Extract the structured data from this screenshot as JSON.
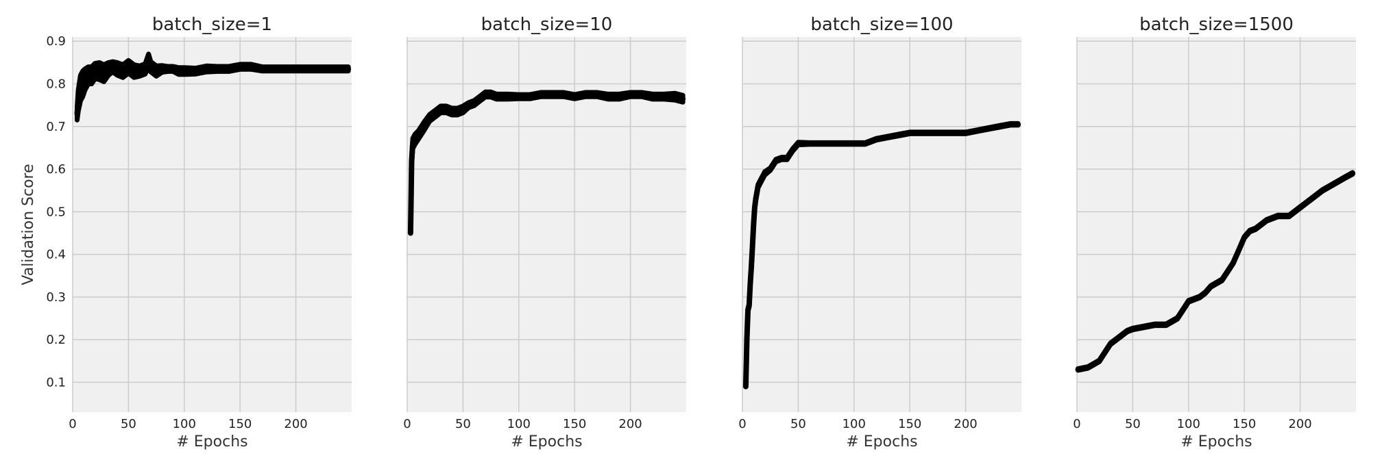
{
  "colors": {
    "plot_bg": "#f0f0f0",
    "grid": "#cbcbcb",
    "line": "#000000"
  },
  "chart_data": [
    {
      "type": "line",
      "title": "batch_size=1",
      "xlabel": "# Epochs",
      "ylabel": "Validation Score",
      "xlim": [
        0,
        250
      ],
      "ylim": [
        0.03,
        0.91
      ],
      "xticks": [
        0,
        50,
        100,
        150,
        200
      ],
      "yticks": [
        0.1,
        0.2,
        0.3,
        0.4,
        0.5,
        0.6,
        0.7,
        0.8,
        0.9
      ],
      "show_ytick_labels": true,
      "grid": true,
      "series": [
        {
          "x": [
            4,
            5,
            7,
            9,
            11,
            14,
            17,
            20,
            24,
            28,
            32,
            36,
            40,
            45,
            50,
            55,
            60,
            65,
            68,
            70,
            75,
            80,
            85,
            90,
            95,
            100,
            110,
            120,
            130,
            140,
            150,
            160,
            170,
            180,
            190,
            200,
            210,
            220,
            230,
            240,
            247
          ],
          "y": [
            0.73,
            0.76,
            0.79,
            0.8,
            0.81,
            0.82,
            0.82,
            0.83,
            0.83,
            0.825,
            0.835,
            0.84,
            0.835,
            0.83,
            0.84,
            0.83,
            0.83,
            0.835,
            0.855,
            0.84,
            0.83,
            0.835,
            0.835,
            0.835,
            0.83,
            0.83,
            0.83,
            0.835,
            0.835,
            0.835,
            0.84,
            0.84,
            0.835,
            0.835,
            0.835,
            0.835,
            0.835,
            0.835,
            0.835,
            0.835,
            0.835
          ],
          "noise": [
            0.015,
            0.025,
            0.03,
            0.03,
            0.025,
            0.02,
            0.02,
            0.018,
            0.02,
            0.02,
            0.015,
            0.012,
            0.015,
            0.015,
            0.015,
            0.015,
            0.012,
            0.012,
            0.015,
            0.012,
            0.012,
            0.008,
            0.006,
            0.006,
            0.008,
            0.008,
            0.007,
            0.007,
            0.006,
            0.006,
            0.006,
            0.006,
            0.005,
            0.005,
            0.005,
            0.005,
            0.005,
            0.005,
            0.005,
            0.005,
            0.005
          ]
        }
      ]
    },
    {
      "type": "line",
      "title": "batch_size=10",
      "xlabel": "# Epochs",
      "ylabel": "",
      "xlim": [
        0,
        250
      ],
      "ylim": [
        0.03,
        0.91
      ],
      "xticks": [
        0,
        50,
        100,
        150,
        200
      ],
      "yticks": [
        0.1,
        0.2,
        0.3,
        0.4,
        0.5,
        0.6,
        0.7,
        0.8,
        0.9
      ],
      "show_ytick_labels": false,
      "grid": true,
      "series": [
        {
          "x": [
            3,
            4,
            5,
            7,
            10,
            15,
            20,
            25,
            30,
            35,
            40,
            45,
            50,
            55,
            60,
            65,
            70,
            75,
            80,
            90,
            100,
            110,
            120,
            130,
            140,
            150,
            160,
            170,
            180,
            190,
            200,
            210,
            220,
            230,
            240,
            247
          ],
          "y": [
            0.45,
            0.62,
            0.66,
            0.67,
            0.68,
            0.7,
            0.72,
            0.73,
            0.74,
            0.74,
            0.735,
            0.735,
            0.74,
            0.75,
            0.755,
            0.765,
            0.775,
            0.775,
            0.77,
            0.77,
            0.77,
            0.77,
            0.775,
            0.775,
            0.775,
            0.77,
            0.775,
            0.775,
            0.77,
            0.77,
            0.775,
            0.775,
            0.77,
            0.77,
            0.77,
            0.765
          ],
          "noise": [
            0.0,
            0.01,
            0.012,
            0.012,
            0.01,
            0.01,
            0.008,
            0.008,
            0.008,
            0.008,
            0.008,
            0.008,
            0.008,
            0.006,
            0.006,
            0.006,
            0.006,
            0.006,
            0.006,
            0.006,
            0.005,
            0.005,
            0.005,
            0.005,
            0.005,
            0.005,
            0.005,
            0.005,
            0.006,
            0.006,
            0.005,
            0.005,
            0.006,
            0.006,
            0.008,
            0.008
          ]
        }
      ]
    },
    {
      "type": "line",
      "title": "batch_size=100",
      "xlabel": "# Epochs",
      "ylabel": "",
      "xlim": [
        0,
        250
      ],
      "ylim": [
        0.03,
        0.91
      ],
      "xticks": [
        0,
        50,
        100,
        150,
        200
      ],
      "yticks": [
        0.1,
        0.2,
        0.3,
        0.4,
        0.5,
        0.6,
        0.7,
        0.8,
        0.9
      ],
      "show_ytick_labels": false,
      "grid": true,
      "series": [
        {
          "x": [
            3,
            4,
            5,
            6,
            7,
            8,
            9,
            10,
            11,
            12,
            14,
            16,
            18,
            20,
            25,
            30,
            35,
            40,
            45,
            50,
            60,
            70,
            80,
            90,
            100,
            110,
            120,
            130,
            140,
            150,
            160,
            170,
            180,
            190,
            200,
            210,
            220,
            230,
            240,
            247
          ],
          "y": [
            0.09,
            0.2,
            0.27,
            0.28,
            0.33,
            0.37,
            0.42,
            0.47,
            0.51,
            0.53,
            0.56,
            0.57,
            0.58,
            0.59,
            0.6,
            0.62,
            0.625,
            0.625,
            0.645,
            0.66,
            0.66,
            0.66,
            0.66,
            0.66,
            0.66,
            0.66,
            0.67,
            0.675,
            0.68,
            0.685,
            0.685,
            0.685,
            0.685,
            0.685,
            0.685,
            0.69,
            0.695,
            0.7,
            0.705,
            0.705
          ],
          "noise": [
            0.0,
            0.004,
            0.004,
            0.004,
            0.004,
            0.004,
            0.004,
            0.004,
            0.004,
            0.004,
            0.004,
            0.004,
            0.004,
            0.004,
            0.003,
            0.003,
            0.003,
            0.003,
            0.003,
            0.003,
            0.002,
            0.002,
            0.002,
            0.002,
            0.002,
            0.002,
            0.002,
            0.002,
            0.002,
            0.002,
            0.002,
            0.002,
            0.002,
            0.002,
            0.002,
            0.002,
            0.002,
            0.002,
            0.002,
            0.002
          ]
        }
      ]
    },
    {
      "type": "line",
      "title": "batch_size=1500",
      "xlabel": "# Epochs",
      "ylabel": "",
      "xlim": [
        0,
        250
      ],
      "ylim": [
        0.03,
        0.91
      ],
      "xticks": [
        0,
        50,
        100,
        150,
        200
      ],
      "yticks": [
        0.1,
        0.2,
        0.3,
        0.4,
        0.5,
        0.6,
        0.7,
        0.8,
        0.9
      ],
      "show_ytick_labels": false,
      "grid": true,
      "series": [
        {
          "x": [
            1,
            10,
            20,
            25,
            30,
            35,
            40,
            45,
            50,
            60,
            70,
            80,
            90,
            95,
            100,
            110,
            115,
            120,
            130,
            135,
            140,
            145,
            150,
            155,
            160,
            170,
            180,
            190,
            200,
            210,
            220,
            230,
            240,
            247
          ],
          "y": [
            0.13,
            0.135,
            0.15,
            0.17,
            0.19,
            0.2,
            0.21,
            0.22,
            0.225,
            0.23,
            0.235,
            0.235,
            0.25,
            0.27,
            0.29,
            0.3,
            0.31,
            0.325,
            0.34,
            0.36,
            0.38,
            0.41,
            0.44,
            0.455,
            0.46,
            0.48,
            0.49,
            0.49,
            0.51,
            0.53,
            0.55,
            0.565,
            0.58,
            0.59
          ],
          "noise": [
            0.002,
            0.002,
            0.002,
            0.002,
            0.002,
            0.002,
            0.002,
            0.002,
            0.002,
            0.002,
            0.002,
            0.002,
            0.002,
            0.002,
            0.002,
            0.002,
            0.002,
            0.002,
            0.002,
            0.002,
            0.002,
            0.002,
            0.002,
            0.002,
            0.002,
            0.002,
            0.002,
            0.002,
            0.002,
            0.002,
            0.002,
            0.002,
            0.002,
            0.002
          ]
        }
      ]
    }
  ]
}
